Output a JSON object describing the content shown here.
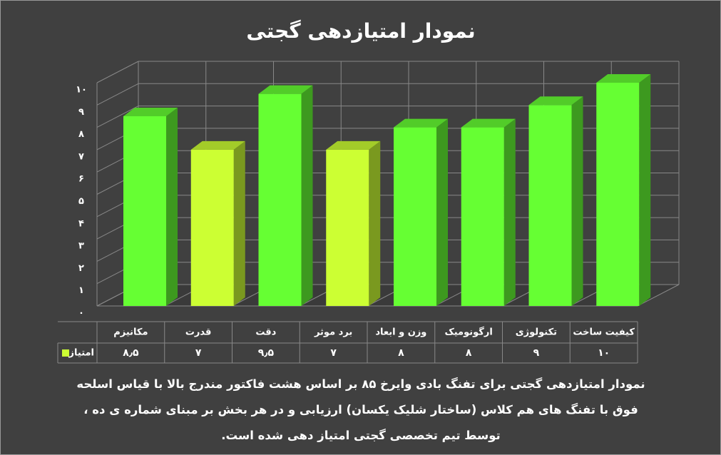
{
  "chart_data": {
    "type": "bar3d",
    "title": "نمودار امتیازدهی گجتی",
    "categories": [
      "مکانیزم",
      "قدرت",
      "دقت",
      "برد موثر",
      "وزن و ابعاد",
      "ارگونومیک",
      "تکنولوژی",
      "کیفیت ساخت"
    ],
    "series": [
      {
        "name": "امتیاز",
        "color": "#ccff33",
        "colors": [
          "#66ff33",
          "#ccff33",
          "#66ff33",
          "#ccff33",
          "#66ff33",
          "#66ff33",
          "#66ff33",
          "#66ff33"
        ],
        "values": [
          8.5,
          7,
          9.5,
          7,
          8,
          8,
          9,
          10
        ],
        "value_labels": [
          "۸٫۵",
          "۷",
          "۹٫۵",
          "۷",
          "۸",
          "۸",
          "۹",
          "۱۰"
        ]
      }
    ],
    "ylim": [
      0,
      10
    ],
    "yticks": [
      {
        "value": 0,
        "label": "۰"
      },
      {
        "value": 1,
        "label": "۱"
      },
      {
        "value": 2,
        "label": "۲"
      },
      {
        "value": 3,
        "label": "۳"
      },
      {
        "value": 4,
        "label": "۴"
      },
      {
        "value": 5,
        "label": "۵"
      },
      {
        "value": 6,
        "label": "۶"
      },
      {
        "value": 7,
        "label": "۷"
      },
      {
        "value": 8,
        "label": "۸"
      },
      {
        "value": 9,
        "label": "۹"
      },
      {
        "value": 10,
        "label": "۱۰"
      }
    ],
    "grid": true,
    "caption": "نمودار امتیازدهی گجتی برای تفنگ بادی وایرخ ۸۵ بر اساس هشت فاکتور مندرج بالا با قیاس اسلحه فوق با تفنگ های هم کلاس (ساختار شلیک یکسان) ارزیابی و در هر بخش بر مبنای شماره ی ده ، توسط تیم تخصصی گجتی امتیاز دهی شده است."
  }
}
